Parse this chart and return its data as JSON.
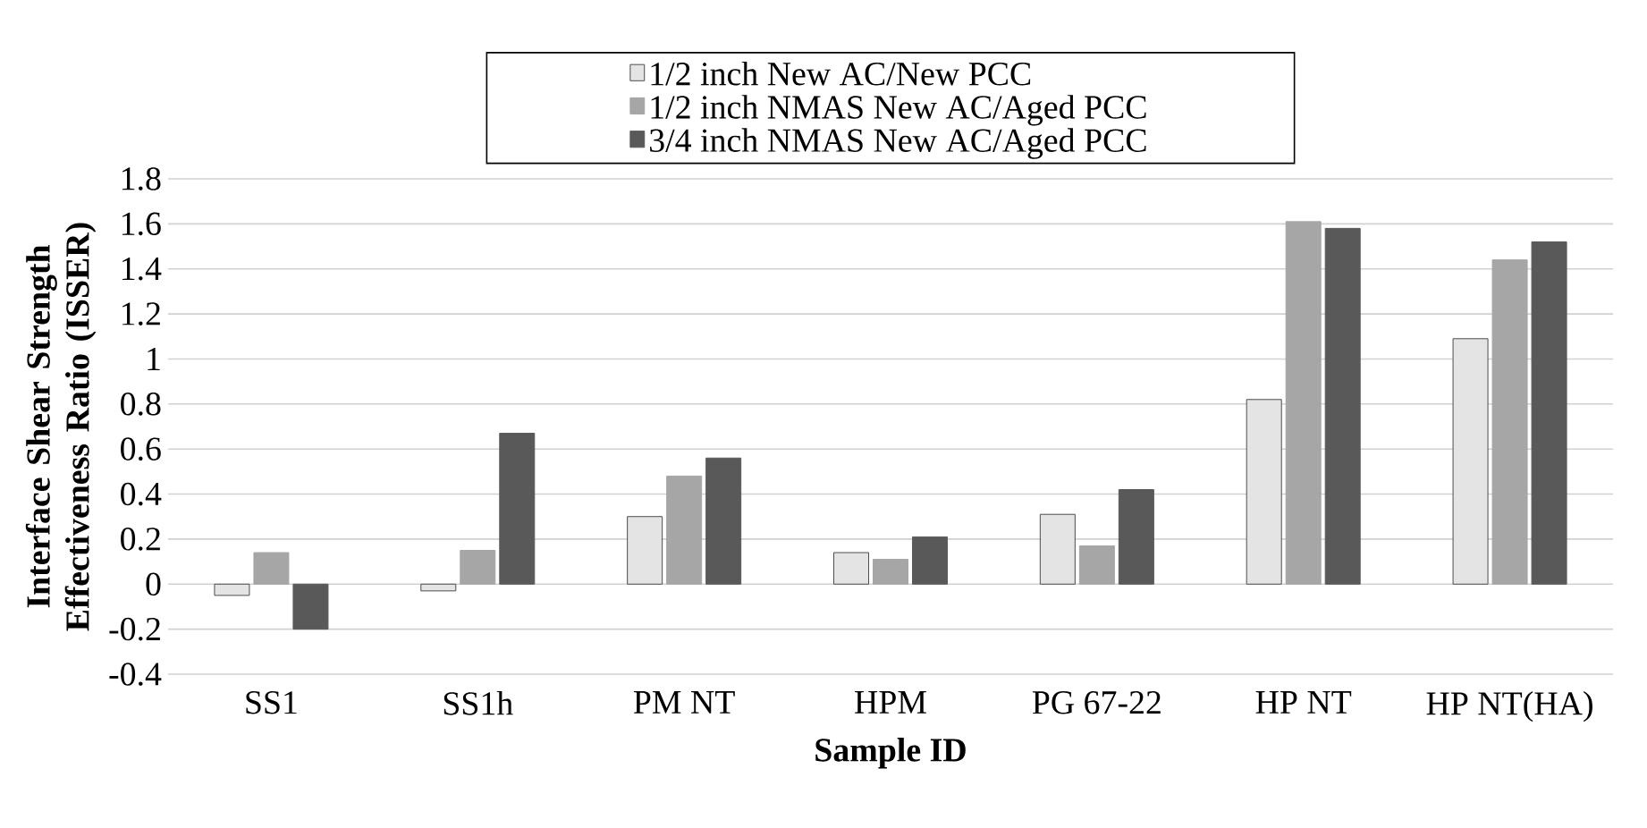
{
  "chart_data": {
    "type": "bar",
    "xlabel": "Sample ID",
    "ylabel": "Interface Shear Strength Effectiveness Ratio (ISSER)",
    "categories": [
      "SS1",
      "SS1h",
      "PM NT",
      "HPM",
      "PG 67-22",
      "HP NT",
      "HP NT(HA)"
    ],
    "series": [
      {
        "name": "1/2 inch New AC/New PCC",
        "color": "#e4e4e4",
        "values": [
          -0.05,
          -0.03,
          0.3,
          0.14,
          0.31,
          0.82,
          1.09
        ]
      },
      {
        "name": "1/2 inch NMAS  New AC/Aged PCC",
        "color": "#a6a6a6",
        "values": [
          0.14,
          0.15,
          0.48,
          0.11,
          0.17,
          1.61,
          1.44
        ]
      },
      {
        "name": "3/4 inch NMAS New AC/Aged PCC",
        "color": "#595959",
        "values": [
          -0.2,
          0.67,
          0.56,
          0.21,
          0.42,
          1.58,
          1.52
        ]
      }
    ],
    "ylim": [
      -0.4,
      1.8
    ],
    "yticks": [
      -0.4,
      -0.2,
      0,
      0.2,
      0.4,
      0.6,
      0.8,
      1,
      1.2,
      1.4,
      1.6,
      1.8
    ],
    "grid": "y",
    "legend": "top"
  }
}
